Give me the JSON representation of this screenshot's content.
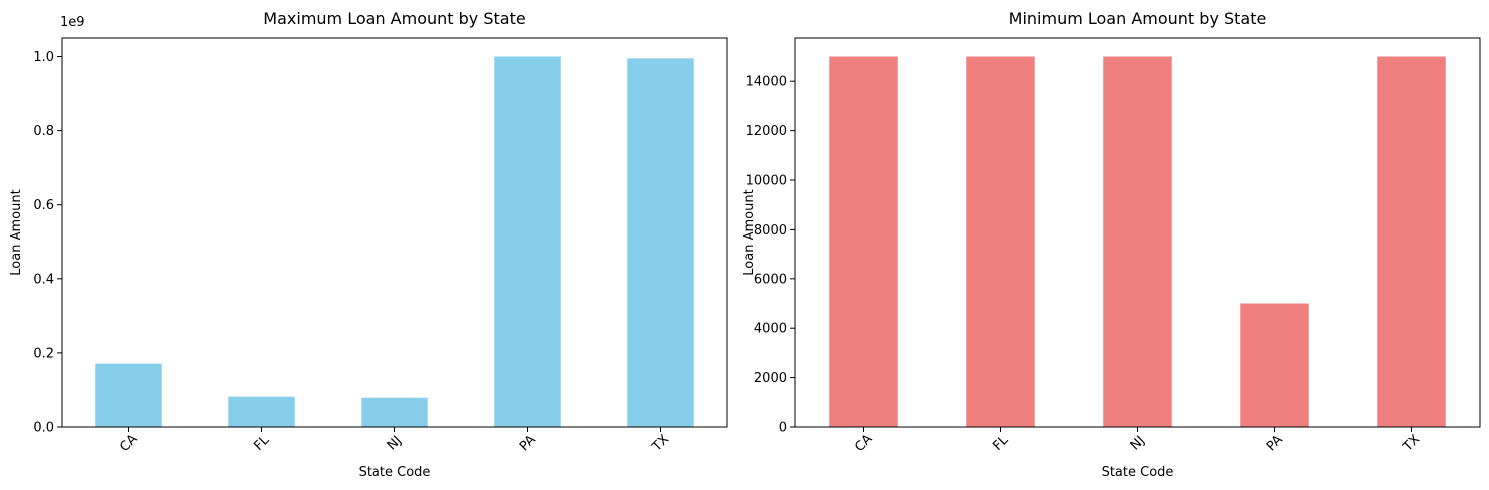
{
  "chart_data": [
    {
      "type": "bar",
      "title": "Maximum Loan Amount by State",
      "xlabel": "State Code",
      "ylabel": "Loan Amount",
      "categories": [
        "CA",
        "FL",
        "NJ",
        "PA",
        "TX"
      ],
      "values": [
        171000000,
        82000000,
        79000000,
        1000000000,
        995000000
      ],
      "ylim": [
        0,
        1050000000
      ],
      "yticks": [
        0,
        200000000,
        400000000,
        600000000,
        800000000,
        1000000000
      ],
      "ytick_labels": [
        "0.0",
        "0.2",
        "0.4",
        "0.6",
        "0.8",
        "1.0"
      ],
      "offset_text": "1e9",
      "color": "#87ceeb",
      "grid": false
    },
    {
      "type": "bar",
      "title": "Minimum Loan Amount by State",
      "xlabel": "State Code",
      "ylabel": "Loan Amount",
      "categories": [
        "CA",
        "FL",
        "NJ",
        "PA",
        "TX"
      ],
      "values": [
        15000,
        15000,
        15000,
        5000,
        15000
      ],
      "ylim": [
        0,
        15750
      ],
      "yticks": [
        0,
        2000,
        4000,
        6000,
        8000,
        10000,
        12000,
        14000
      ],
      "ytick_labels": [
        "0",
        "2000",
        "4000",
        "6000",
        "8000",
        "10000",
        "12000",
        "14000"
      ],
      "offset_text": "",
      "color": "#f08080",
      "grid": false
    }
  ]
}
